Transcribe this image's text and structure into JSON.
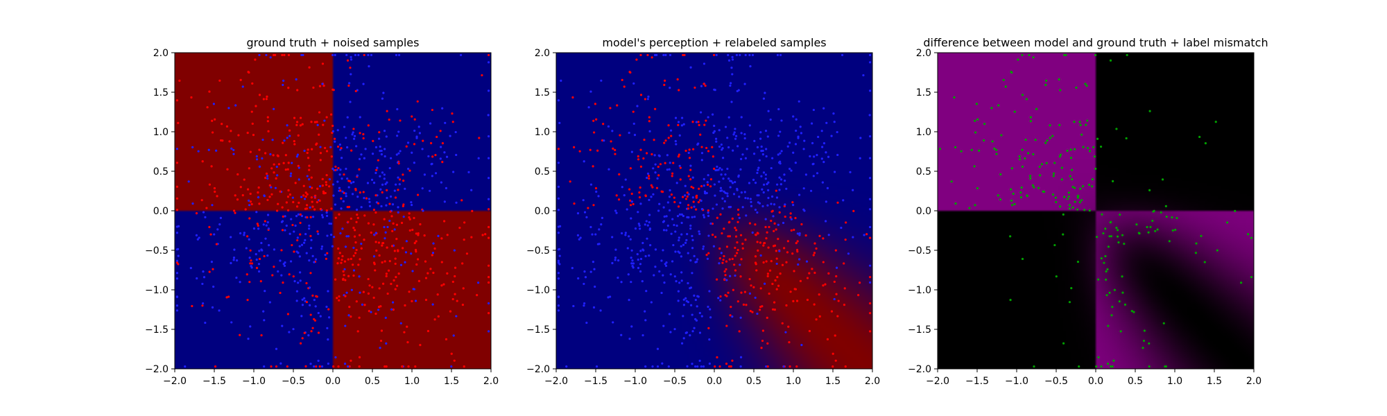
{
  "chart_data": [
    {
      "type": "heatmap",
      "title": "ground truth + noised samples",
      "field": "checkerboard",
      "x_range": [
        -2.0,
        2.0
      ],
      "y_range": [
        -2.0,
        2.0
      ],
      "x_ticks": [
        "-2.0",
        "-1.5",
        "-1.0",
        "-0.5",
        "0.0",
        "0.5",
        "1.0",
        "1.5",
        "2.0"
      ],
      "y_ticks": [
        "-2.0",
        "-1.5",
        "-1.0",
        "-0.5",
        "0.0",
        "0.5",
        "1.0",
        "1.5",
        "2.0"
      ],
      "colors": {
        "positive": "#800000",
        "negative": "#00007f"
      },
      "samples": {
        "count": 1000,
        "colors": [
          "#ff0000",
          "#2020ff"
        ],
        "label_rule": "noised sign(x*y) with ~30% flips"
      },
      "grid": false
    },
    {
      "type": "heatmap",
      "title": "model's perception + relabeled samples",
      "field": "diagonal_band",
      "x_range": [
        -2.0,
        2.0
      ],
      "y_range": [
        -2.0,
        2.0
      ],
      "x_ticks": [
        "-2.0",
        "-1.5",
        "-1.0",
        "-0.5",
        "0.0",
        "0.5",
        "1.0",
        "1.5",
        "2.0"
      ],
      "y_ticks": [
        "-2.0",
        "-1.5",
        "-1.0",
        "-0.5",
        "0.0",
        "0.5",
        "1.0",
        "1.5",
        "2.0"
      ],
      "colors": {
        "positive": "#7f0000",
        "negative": "#00007f"
      },
      "samples": {
        "count": 1000,
        "colors": [
          "#ff0000",
          "#2020ff"
        ],
        "label_rule": "model prediction"
      },
      "grid": false
    },
    {
      "type": "heatmap",
      "title": "difference between model and ground truth + label mismatch",
      "field": "difference",
      "x_range": [
        -2.0,
        2.0
      ],
      "y_range": [
        -2.0,
        2.0
      ],
      "x_ticks": [
        "-2.0",
        "-1.5",
        "-1.0",
        "-0.5",
        "0.0",
        "0.5",
        "1.0",
        "1.5",
        "2.0"
      ],
      "y_ticks": [
        "-2.0",
        "-1.5",
        "-1.0",
        "-0.5",
        "0.0",
        "0.5",
        "1.0",
        "1.5",
        "2.0"
      ],
      "colors": {
        "high": "#800080",
        "low": "#000000"
      },
      "samples": {
        "count": 300,
        "colors": [
          "#00a000"
        ],
        "label_rule": "mismatch points"
      },
      "grid": false
    }
  ]
}
